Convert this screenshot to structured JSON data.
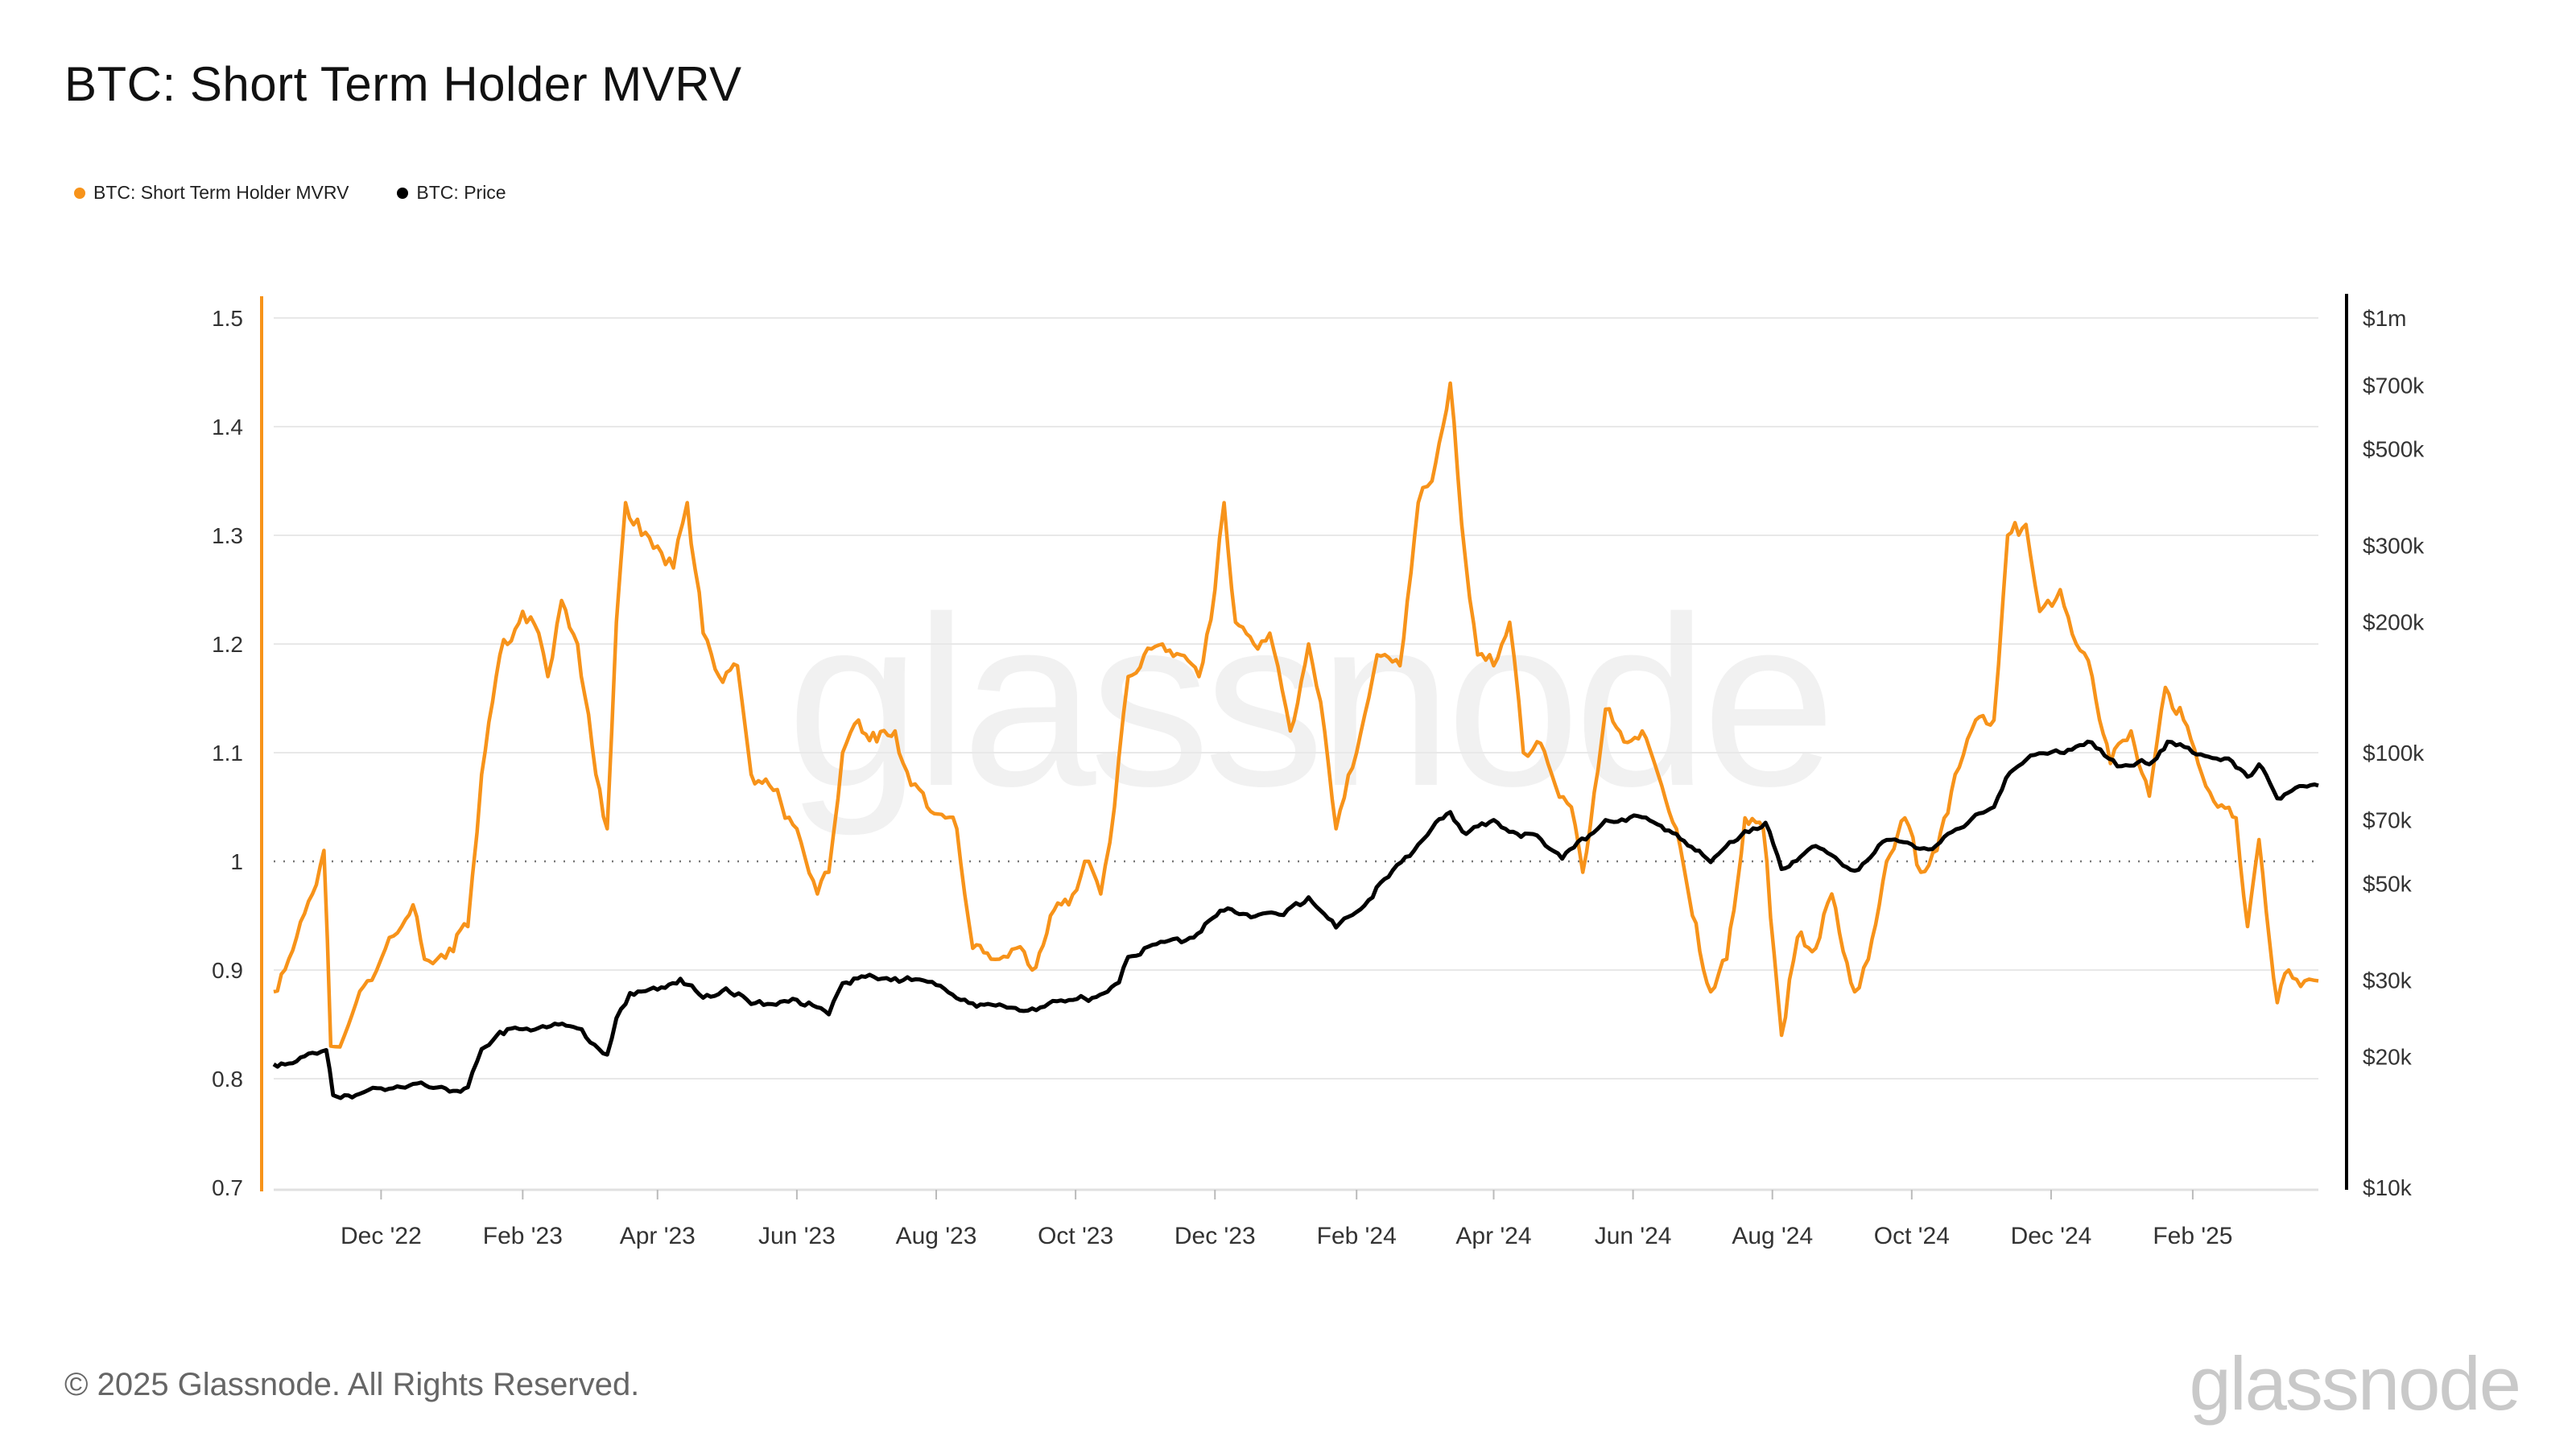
{
  "title": "BTC: Short Term Holder MVRV",
  "footer": "© 2025 Glassnode. All Rights Reserved.",
  "brand": "glassnode",
  "watermark": "glassnode",
  "colors": {
    "mvrv": "#f7931a",
    "price": "#000000",
    "grid": "#e8e8e8"
  },
  "chart_data": {
    "type": "line",
    "legend": [
      "BTC: Short Term Holder MVRV",
      "BTC: Price"
    ],
    "legend_position": "top-left",
    "grid": true,
    "x_range": [
      "2022-10-15",
      "2025-03-28"
    ],
    "x_ticks": [
      {
        "date": "2022-12-01",
        "label": "Dec '22"
      },
      {
        "date": "2023-02-01",
        "label": "Feb '23"
      },
      {
        "date": "2023-04-01",
        "label": "Apr '23"
      },
      {
        "date": "2023-06-01",
        "label": "Jun '23"
      },
      {
        "date": "2023-08-01",
        "label": "Aug '23"
      },
      {
        "date": "2023-10-01",
        "label": "Oct '23"
      },
      {
        "date": "2023-12-01",
        "label": "Dec '23"
      },
      {
        "date": "2024-02-01",
        "label": "Feb '24"
      },
      {
        "date": "2024-04-01",
        "label": "Apr '24"
      },
      {
        "date": "2024-06-01",
        "label": "Jun '24"
      },
      {
        "date": "2024-08-01",
        "label": "Aug '24"
      },
      {
        "date": "2024-10-01",
        "label": "Oct '24"
      },
      {
        "date": "2024-12-01",
        "label": "Dec '24"
      },
      {
        "date": "2025-02-01",
        "label": "Feb '25"
      }
    ],
    "y_left": {
      "scale": "linear",
      "range": [
        0.7,
        1.5
      ],
      "ticks": [
        0.7,
        0.8,
        0.9,
        1,
        1.1,
        1.2,
        1.3,
        1.4,
        1.5
      ],
      "tick_labels": [
        "0.7",
        "0.8",
        "0.9",
        "1",
        "1.1",
        "1.2",
        "1.3",
        "1.4",
        "1.5"
      ],
      "reference_line": 1
    },
    "y_right": {
      "scale": "log",
      "range": [
        10000,
        1000000
      ],
      "ticks": [
        10000,
        20000,
        30000,
        50000,
        70000,
        100000,
        200000,
        300000,
        500000,
        700000,
        1000000
      ],
      "tick_labels": [
        "$10k",
        "$20k",
        "$30k",
        "$50k",
        "$70k",
        "$100k",
        "$200k",
        "$300k",
        "$500k",
        "$700k",
        "$1m"
      ]
    },
    "series": [
      {
        "name": "BTC: Short Term Holder MVRV",
        "axis": "left",
        "points": [
          [
            "2022-10-15",
            0.88
          ],
          [
            "2022-10-25",
            0.93
          ],
          [
            "2022-11-01",
            0.97
          ],
          [
            "2022-11-06",
            1.01
          ],
          [
            "2022-11-09",
            0.83
          ],
          [
            "2022-11-15",
            0.84
          ],
          [
            "2022-11-25",
            0.89
          ],
          [
            "2022-12-01",
            0.91
          ],
          [
            "2022-12-10",
            0.94
          ],
          [
            "2022-12-15",
            0.96
          ],
          [
            "2022-12-20",
            0.91
          ],
          [
            "2022-12-31",
            0.92
          ],
          [
            "2023-01-08",
            0.94
          ],
          [
            "2023-01-14",
            1.08
          ],
          [
            "2023-01-22",
            1.19
          ],
          [
            "2023-02-01",
            1.23
          ],
          [
            "2023-02-08",
            1.21
          ],
          [
            "2023-02-12",
            1.17
          ],
          [
            "2023-02-18",
            1.24
          ],
          [
            "2023-02-25",
            1.2
          ],
          [
            "2023-03-05",
            1.08
          ],
          [
            "2023-03-10",
            1.03
          ],
          [
            "2023-03-14",
            1.22
          ],
          [
            "2023-03-18",
            1.33
          ],
          [
            "2023-03-25",
            1.3
          ],
          [
            "2023-04-01",
            1.29
          ],
          [
            "2023-04-08",
            1.27
          ],
          [
            "2023-04-14",
            1.33
          ],
          [
            "2023-04-21",
            1.21
          ],
          [
            "2023-04-28",
            1.17
          ],
          [
            "2023-05-06",
            1.18
          ],
          [
            "2023-05-12",
            1.08
          ],
          [
            "2023-05-20",
            1.07
          ],
          [
            "2023-06-01",
            1.03
          ],
          [
            "2023-06-10",
            0.97
          ],
          [
            "2023-06-15",
            0.99
          ],
          [
            "2023-06-21",
            1.1
          ],
          [
            "2023-06-28",
            1.13
          ],
          [
            "2023-07-06",
            1.11
          ],
          [
            "2023-07-14",
            1.12
          ],
          [
            "2023-07-21",
            1.07
          ],
          [
            "2023-07-28",
            1.05
          ],
          [
            "2023-08-05",
            1.04
          ],
          [
            "2023-08-10",
            1.03
          ],
          [
            "2023-08-17",
            0.92
          ],
          [
            "2023-08-25",
            0.91
          ],
          [
            "2023-09-05",
            0.92
          ],
          [
            "2023-09-12",
            0.9
          ],
          [
            "2023-09-20",
            0.95
          ],
          [
            "2023-09-28",
            0.96
          ],
          [
            "2023-10-05",
            1.0
          ],
          [
            "2023-10-12",
            0.97
          ],
          [
            "2023-10-18",
            1.05
          ],
          [
            "2023-10-24",
            1.17
          ],
          [
            "2023-10-31",
            1.19
          ],
          [
            "2023-11-08",
            1.2
          ],
          [
            "2023-11-16",
            1.19
          ],
          [
            "2023-11-24",
            1.17
          ],
          [
            "2023-12-01",
            1.25
          ],
          [
            "2023-12-05",
            1.33
          ],
          [
            "2023-12-10",
            1.22
          ],
          [
            "2023-12-18",
            1.2
          ],
          [
            "2023-12-25",
            1.21
          ],
          [
            "2024-01-03",
            1.12
          ],
          [
            "2024-01-11",
            1.2
          ],
          [
            "2024-01-18",
            1.12
          ],
          [
            "2024-01-23",
            1.03
          ],
          [
            "2024-02-01",
            1.1
          ],
          [
            "2024-02-10",
            1.19
          ],
          [
            "2024-02-20",
            1.18
          ],
          [
            "2024-02-28",
            1.33
          ],
          [
            "2024-03-05",
            1.35
          ],
          [
            "2024-03-13",
            1.44
          ],
          [
            "2024-03-18",
            1.31
          ],
          [
            "2024-03-25",
            1.19
          ],
          [
            "2024-04-01",
            1.18
          ],
          [
            "2024-04-08",
            1.22
          ],
          [
            "2024-04-14",
            1.1
          ],
          [
            "2024-04-20",
            1.11
          ],
          [
            "2024-04-28",
            1.07
          ],
          [
            "2024-05-05",
            1.05
          ],
          [
            "2024-05-10",
            0.99
          ],
          [
            "2024-05-20",
            1.14
          ],
          [
            "2024-05-28",
            1.11
          ],
          [
            "2024-06-05",
            1.12
          ],
          [
            "2024-06-12",
            1.08
          ],
          [
            "2024-06-20",
            1.03
          ],
          [
            "2024-06-27",
            0.95
          ],
          [
            "2024-07-05",
            0.88
          ],
          [
            "2024-07-12",
            0.91
          ],
          [
            "2024-07-20",
            1.04
          ],
          [
            "2024-07-28",
            1.03
          ],
          [
            "2024-08-05",
            0.84
          ],
          [
            "2024-08-12",
            0.93
          ],
          [
            "2024-08-20",
            0.92
          ],
          [
            "2024-08-27",
            0.97
          ],
          [
            "2024-09-06",
            0.88
          ],
          [
            "2024-09-12",
            0.91
          ],
          [
            "2024-09-20",
            1.0
          ],
          [
            "2024-09-28",
            1.04
          ],
          [
            "2024-10-05",
            0.99
          ],
          [
            "2024-10-12",
            1.01
          ],
          [
            "2024-10-20",
            1.08
          ],
          [
            "2024-10-29",
            1.13
          ],
          [
            "2024-11-06",
            1.13
          ],
          [
            "2024-11-12",
            1.3
          ],
          [
            "2024-11-20",
            1.31
          ],
          [
            "2024-11-26",
            1.23
          ],
          [
            "2024-12-05",
            1.25
          ],
          [
            "2024-12-12",
            1.2
          ],
          [
            "2024-12-19",
            1.17
          ],
          [
            "2024-12-27",
            1.09
          ],
          [
            "2025-01-05",
            1.12
          ],
          [
            "2025-01-13",
            1.06
          ],
          [
            "2025-01-20",
            1.16
          ],
          [
            "2025-01-28",
            1.13
          ],
          [
            "2025-02-05",
            1.08
          ],
          [
            "2025-02-12",
            1.05
          ],
          [
            "2025-02-20",
            1.04
          ],
          [
            "2025-02-25",
            0.94
          ],
          [
            "2025-03-02",
            1.02
          ],
          [
            "2025-03-10",
            0.87
          ],
          [
            "2025-03-15",
            0.9
          ],
          [
            "2025-03-22",
            0.89
          ],
          [
            "2025-03-28",
            0.89
          ]
        ]
      },
      {
        "name": "BTC: Price",
        "axis": "right",
        "points": [
          [
            "2022-10-15",
            19200
          ],
          [
            "2022-10-25",
            19500
          ],
          [
            "2022-11-01",
            20400
          ],
          [
            "2022-11-07",
            20700
          ],
          [
            "2022-11-10",
            16300
          ],
          [
            "2022-11-20",
            16300
          ],
          [
            "2022-12-01",
            16900
          ],
          [
            "2022-12-15",
            17300
          ],
          [
            "2022-12-31",
            16600
          ],
          [
            "2023-01-08",
            17000
          ],
          [
            "2023-01-14",
            20800
          ],
          [
            "2023-01-22",
            22800
          ],
          [
            "2023-02-01",
            23100
          ],
          [
            "2023-02-15",
            23800
          ],
          [
            "2023-02-25",
            23200
          ],
          [
            "2023-03-10",
            20200
          ],
          [
            "2023-03-14",
            24500
          ],
          [
            "2023-03-20",
            28000
          ],
          [
            "2023-04-01",
            28500
          ],
          [
            "2023-04-11",
            30200
          ],
          [
            "2023-04-21",
            27300
          ],
          [
            "2023-05-01",
            28700
          ],
          [
            "2023-05-12",
            26400
          ],
          [
            "2023-06-01",
            27000
          ],
          [
            "2023-06-15",
            25000
          ],
          [
            "2023-06-21",
            29500
          ],
          [
            "2023-07-01",
            30500
          ],
          [
            "2023-07-14",
            30300
          ],
          [
            "2023-08-01",
            29200
          ],
          [
            "2023-08-17",
            26500
          ],
          [
            "2023-09-01",
            25900
          ],
          [
            "2023-09-12",
            25800
          ],
          [
            "2023-09-30",
            27000
          ],
          [
            "2023-10-10",
            27400
          ],
          [
            "2023-10-20",
            29600
          ],
          [
            "2023-10-24",
            33900
          ],
          [
            "2023-11-09",
            36700
          ],
          [
            "2023-11-20",
            37500
          ],
          [
            "2023-12-05",
            43300
          ],
          [
            "2023-12-15",
            42500
          ],
          [
            "2023-12-31",
            42300
          ],
          [
            "2024-01-11",
            46500
          ],
          [
            "2024-01-23",
            39600
          ],
          [
            "2024-02-01",
            43000
          ],
          [
            "2024-02-15",
            51800
          ],
          [
            "2024-02-28",
            61500
          ],
          [
            "2024-03-05",
            67000
          ],
          [
            "2024-03-13",
            73000
          ],
          [
            "2024-03-20",
            65000
          ],
          [
            "2024-04-01",
            70000
          ],
          [
            "2024-04-13",
            64000
          ],
          [
            "2024-04-20",
            64500
          ],
          [
            "2024-05-01",
            57000
          ],
          [
            "2024-05-20",
            70000
          ],
          [
            "2024-06-05",
            71000
          ],
          [
            "2024-06-20",
            65000
          ],
          [
            "2024-07-05",
            56000
          ],
          [
            "2024-07-20",
            66000
          ],
          [
            "2024-07-29",
            69000
          ],
          [
            "2024-08-05",
            54000
          ],
          [
            "2024-08-20",
            61000
          ],
          [
            "2024-09-06",
            53500
          ],
          [
            "2024-09-20",
            63000
          ],
          [
            "2024-10-01",
            61500
          ],
          [
            "2024-10-10",
            60000
          ],
          [
            "2024-10-29",
            72000
          ],
          [
            "2024-11-06",
            75000
          ],
          [
            "2024-11-13",
            90000
          ],
          [
            "2024-11-22",
            98500
          ],
          [
            "2024-12-05",
            100000
          ],
          [
            "2024-12-17",
            106000
          ],
          [
            "2024-12-30",
            93000
          ],
          [
            "2025-01-08",
            95000
          ],
          [
            "2025-01-13",
            94000
          ],
          [
            "2025-01-21",
            106000
          ],
          [
            "2025-02-01",
            100000
          ],
          [
            "2025-02-15",
            97000
          ],
          [
            "2025-02-25",
            88000
          ],
          [
            "2025-03-02",
            94000
          ],
          [
            "2025-03-10",
            78500
          ],
          [
            "2025-03-18",
            83000
          ],
          [
            "2025-03-28",
            84000
          ]
        ]
      }
    ]
  }
}
